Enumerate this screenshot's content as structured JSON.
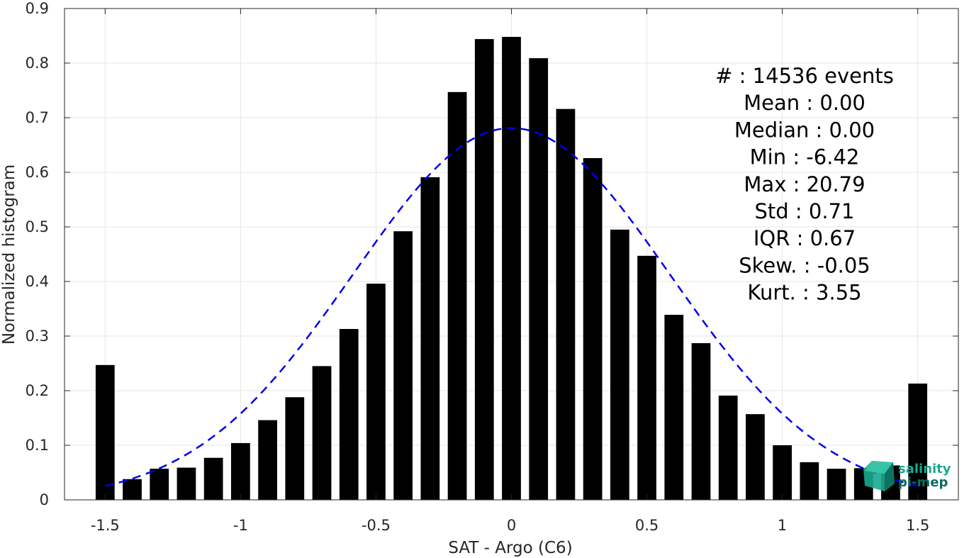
{
  "chart_data": {
    "type": "bar",
    "title": "",
    "xlabel": "SAT - Argo (C6)",
    "ylabel": "Normalized histogram",
    "xlim": [
      -1.65,
      1.65
    ],
    "ylim": [
      0,
      0.9
    ],
    "grid": true,
    "x_ticks": [
      -1.5,
      -1,
      -0.5,
      0,
      0.5,
      1,
      1.5
    ],
    "x_tick_labels": [
      "-1.5",
      "-1",
      "-0.5",
      "0",
      "0.5",
      "1",
      "1.5"
    ],
    "y_ticks": [
      0,
      0.1,
      0.2,
      0.3,
      0.4,
      0.5,
      0.6,
      0.7,
      0.8,
      0.9
    ],
    "y_tick_labels": [
      "0",
      "0.1",
      "0.2",
      "0.3",
      "0.4",
      "0.5",
      "0.6",
      "0.7",
      "0.8",
      "0.9"
    ],
    "bar_width": 0.07,
    "bar_color": "#000000",
    "bars": {
      "x": [
        -1.5,
        -1.4,
        -1.3,
        -1.2,
        -1.1,
        -1.0,
        -0.9,
        -0.8,
        -0.7,
        -0.6,
        -0.5,
        -0.4,
        -0.3,
        -0.2,
        -0.1,
        0.0,
        0.1,
        0.2,
        0.3,
        0.4,
        0.5,
        0.6,
        0.7,
        0.8,
        0.9,
        1.0,
        1.1,
        1.2,
        1.3,
        1.4,
        1.5
      ],
      "values": [
        0.247,
        0.038,
        0.057,
        0.059,
        0.077,
        0.104,
        0.146,
        0.188,
        0.245,
        0.313,
        0.396,
        0.492,
        0.591,
        0.747,
        0.844,
        0.848,
        0.809,
        0.716,
        0.626,
        0.495,
        0.447,
        0.339,
        0.287,
        0.191,
        0.157,
        0.1,
        0.069,
        0.057,
        0.058,
        0.063,
        0.213
      ]
    },
    "fit_curve": {
      "type": "gaussian",
      "style": "dashed",
      "color": "#0000ee",
      "mean": 0.0,
      "peak": 0.681,
      "sigma": 0.585,
      "x_range": [
        -1.5,
        1.5
      ]
    },
    "annotations": [
      "#  : 14536 events",
      "Mean : 0.00",
      "Median : 0.00",
      "Min : -6.42",
      "Max : 20.79",
      "Std : 0.71",
      "IQR : 0.67",
      "Skew. : -0.05",
      "Kurt. : 3.55"
    ]
  },
  "logo": {
    "line1": "salinity",
    "line2": "pi-mep",
    "color_main": "#1aa88e",
    "color_dark": "#0c6b5e"
  }
}
